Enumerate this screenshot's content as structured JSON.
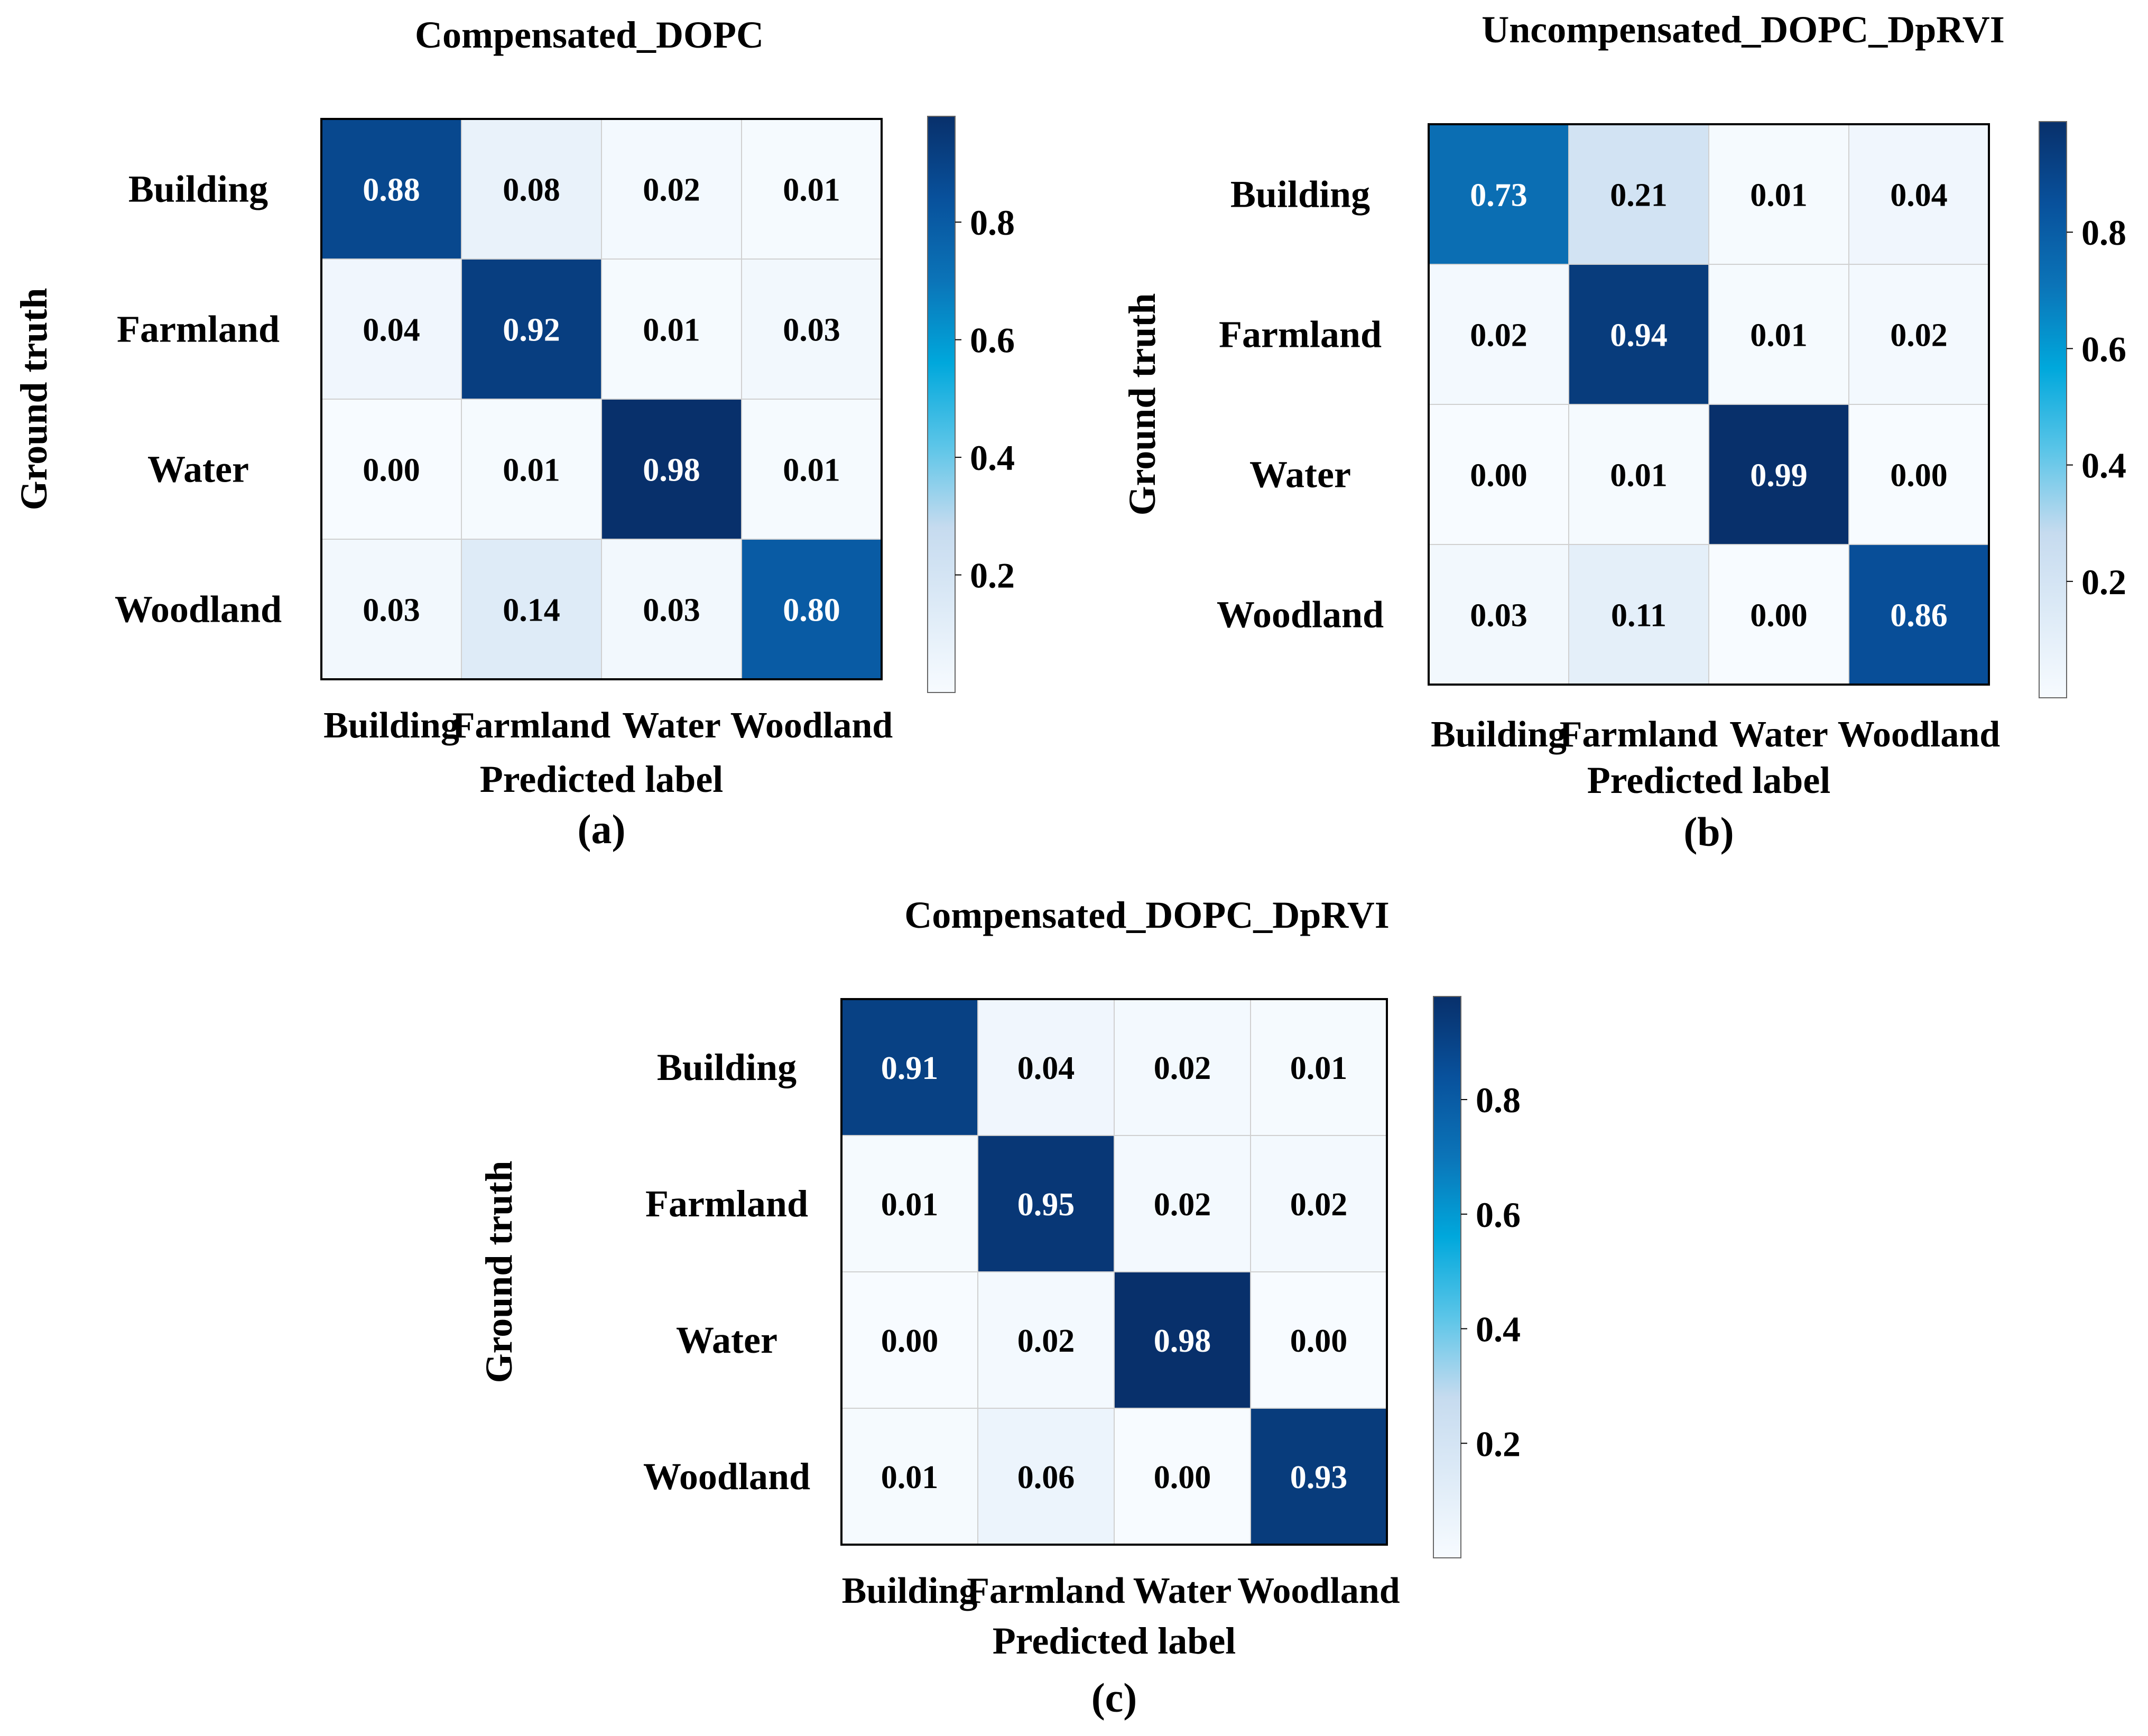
{
  "chart_data": [
    {
      "type": "heatmap",
      "panel_label": "(a)",
      "title": "Compensated_DOPC",
      "xlabel": "Predicted label",
      "ylabel": "Ground truth",
      "row_labels": [
        "Building",
        "Farmland",
        "Water",
        "Woodland"
      ],
      "col_labels": [
        "Building",
        "Farmland",
        "Water",
        "Woodland"
      ],
      "values": [
        [
          0.88,
          0.08,
          0.02,
          0.01
        ],
        [
          0.04,
          0.92,
          0.01,
          0.03
        ],
        [
          0.0,
          0.01,
          0.98,
          0.01
        ],
        [
          0.03,
          0.14,
          0.03,
          0.8
        ]
      ],
      "colorbar_ticks": [
        0.2,
        0.4,
        0.6,
        0.8
      ],
      "colorbar_range": [
        0.0,
        0.98
      ]
    },
    {
      "type": "heatmap",
      "panel_label": "(b)",
      "title": "Uncompensated_DOPC_DpRVI",
      "xlabel": "Predicted label",
      "ylabel": "Ground truth",
      "row_labels": [
        "Building",
        "Farmland",
        "Water",
        "Woodland"
      ],
      "col_labels": [
        "Building",
        "Farmland",
        "Water",
        "Woodland"
      ],
      "values": [
        [
          0.73,
          0.21,
          0.01,
          0.04
        ],
        [
          0.02,
          0.94,
          0.01,
          0.02
        ],
        [
          0.0,
          0.01,
          0.99,
          0.0
        ],
        [
          0.03,
          0.11,
          0.0,
          0.86
        ]
      ],
      "colorbar_ticks": [
        0.2,
        0.4,
        0.6,
        0.8
      ],
      "colorbar_range": [
        0.0,
        0.99
      ]
    },
    {
      "type": "heatmap",
      "panel_label": "(c)",
      "title": "Compensated_DOPC_DpRVI",
      "xlabel": "Predicted label",
      "ylabel": "Ground truth",
      "row_labels": [
        "Building",
        "Farmland",
        "Water",
        "Woodland"
      ],
      "col_labels": [
        "Building",
        "Farmland",
        "Water",
        "Woodland"
      ],
      "values": [
        [
          0.91,
          0.04,
          0.02,
          0.01
        ],
        [
          0.01,
          0.95,
          0.02,
          0.02
        ],
        [
          0.0,
          0.02,
          0.98,
          0.0
        ],
        [
          0.01,
          0.06,
          0.0,
          0.93
        ]
      ],
      "colorbar_ticks": [
        0.2,
        0.4,
        0.6,
        0.8
      ],
      "colorbar_range": [
        0.0,
        0.98
      ]
    }
  ],
  "colormap": {
    "name": "Blues",
    "stops": [
      "#f7fbff",
      "#deebf7",
      "#c6dbef",
      "#5bc5e8",
      "#00a8dc",
      "#0b74b8",
      "#08519c",
      "#08306b"
    ]
  }
}
